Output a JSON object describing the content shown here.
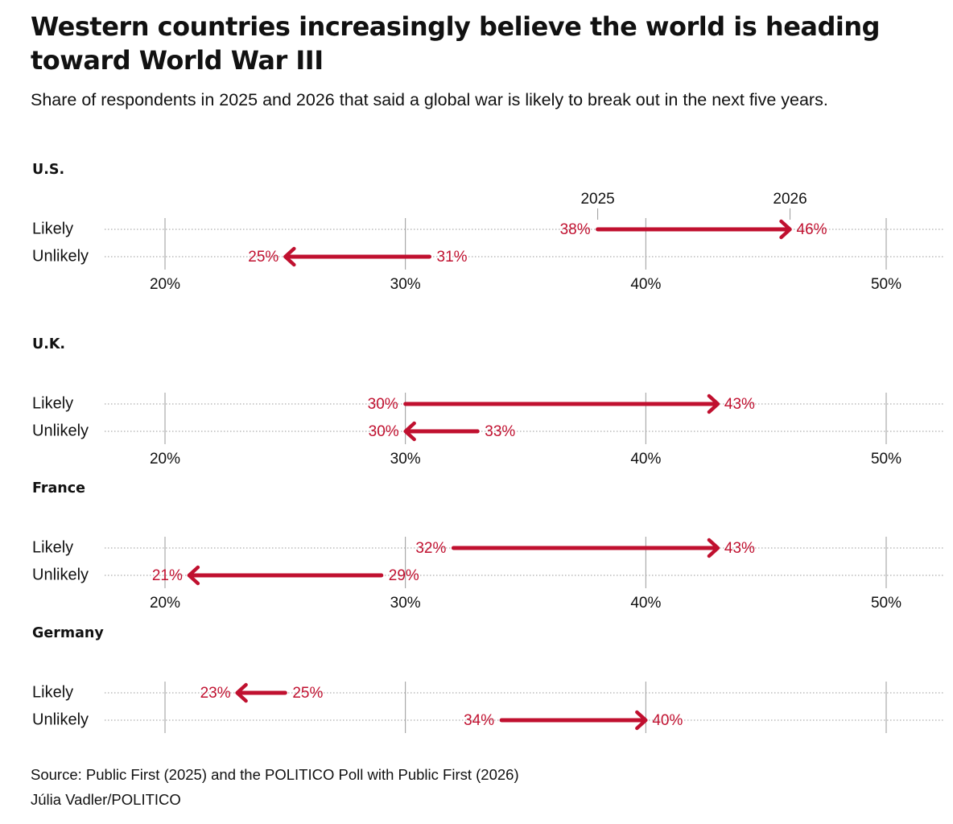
{
  "title": "Western countries increasingly believe the world is heading toward World War III",
  "subtitle": "Share of respondents in 2025 and 2026 that said a global war is likely to break out in the next five years.",
  "source": "Source: Public First (2025) and the POLITICO Poll with Public First (2026)",
  "credit": "Júlia Vadler/POLITICO",
  "colors": {
    "arrow": "#c0102f",
    "grid": "#9a9a9a",
    "text": "#111111"
  },
  "chart_data": {
    "type": "dumbbell-arrow",
    "xlim": [
      17.5,
      52.5
    ],
    "ticks": [
      20,
      30,
      40,
      50
    ],
    "tick_labels": [
      "20%",
      "30%",
      "40%",
      "50%"
    ],
    "year_labels": {
      "from": "2025",
      "to": "2026"
    },
    "groups": [
      {
        "country": "U.S.",
        "rows": [
          {
            "label": "Likely",
            "from": 38,
            "to": 46,
            "from_label": "38%",
            "to_label": "46%"
          },
          {
            "label": "Unlikely",
            "from": 31,
            "to": 25,
            "from_label": "31%",
            "to_label": "25%"
          }
        ]
      },
      {
        "country": "U.K.",
        "rows": [
          {
            "label": "Likely",
            "from": 30,
            "to": 43,
            "from_label": "30%",
            "to_label": "43%"
          },
          {
            "label": "Unlikely",
            "from": 33,
            "to": 30,
            "from_label": "33%",
            "to_label": "30%"
          }
        ]
      },
      {
        "country": "France",
        "rows": [
          {
            "label": "Likely",
            "from": 32,
            "to": 43,
            "from_label": "32%",
            "to_label": "43%"
          },
          {
            "label": "Unlikely",
            "from": 29,
            "to": 21,
            "from_label": "29%",
            "to_label": "21%"
          }
        ]
      },
      {
        "country": "Germany",
        "rows": [
          {
            "label": "Likely",
            "from": 25,
            "to": 23,
            "from_label": "25%",
            "to_label": "23%"
          },
          {
            "label": "Unlikely",
            "from": 34,
            "to": 40,
            "from_label": "34%",
            "to_label": "40%"
          }
        ]
      }
    ]
  }
}
